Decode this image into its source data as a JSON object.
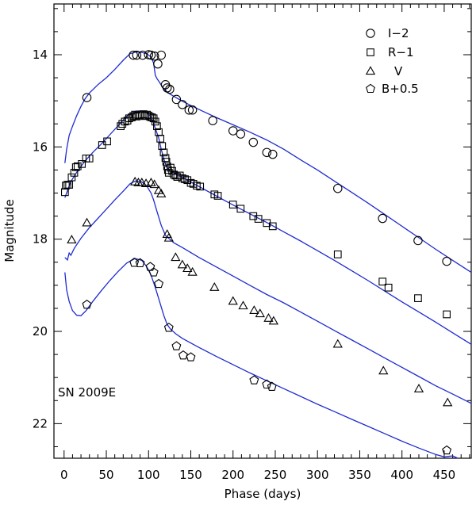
{
  "chart_data": {
    "type": "scatter",
    "xlabel": "Phase (days)",
    "ylabel": "Magnitude",
    "xlim": [
      -12,
      482
    ],
    "ylim": [
      22.75,
      12.9
    ],
    "x_ticks": [
      0,
      50,
      100,
      150,
      200,
      250,
      300,
      350,
      400,
      450
    ],
    "y_ticks": [
      14,
      16,
      18,
      20,
      22
    ],
    "annotation": "SN 2009E",
    "series": [
      {
        "name": "I−2",
        "marker": "circle",
        "points": [
          [
            27,
            14.93
          ],
          [
            82,
            14.01
          ],
          [
            86,
            14.01
          ],
          [
            93,
            14.01
          ],
          [
            100,
            14.0
          ],
          [
            103,
            14.01
          ],
          [
            107,
            14.03
          ],
          [
            111,
            14.2
          ],
          [
            115,
            14.01
          ],
          [
            120,
            14.65
          ],
          [
            122,
            14.72
          ],
          [
            125,
            14.75
          ],
          [
            133,
            14.97
          ],
          [
            140,
            15.08
          ],
          [
            148,
            15.2
          ],
          [
            152,
            15.2
          ],
          [
            176,
            15.43
          ],
          [
            200,
            15.65
          ],
          [
            209,
            15.72
          ],
          [
            224,
            15.9
          ],
          [
            240,
            16.12
          ],
          [
            247,
            16.16
          ],
          [
            324,
            16.9
          ],
          [
            377,
            17.55
          ],
          [
            419,
            18.03
          ],
          [
            453,
            18.48
          ]
        ]
      },
      {
        "name": "R−1",
        "marker": "square",
        "points": [
          [
            1,
            16.98
          ],
          [
            2,
            16.84
          ],
          [
            4,
            16.82
          ],
          [
            6,
            16.82
          ],
          [
            9,
            16.66
          ],
          [
            12,
            16.56
          ],
          [
            14,
            16.44
          ],
          [
            16,
            16.42
          ],
          [
            21,
            16.37
          ],
          [
            26,
            16.25
          ],
          [
            30,
            16.25
          ],
          [
            45,
            15.96
          ],
          [
            51,
            15.88
          ],
          [
            67,
            15.55
          ],
          [
            69,
            15.5
          ],
          [
            72,
            15.45
          ],
          [
            75,
            15.43
          ],
          [
            77,
            15.38
          ],
          [
            80,
            15.36
          ],
          [
            82,
            15.33
          ],
          [
            84,
            15.3
          ],
          [
            86,
            15.34
          ],
          [
            88,
            15.32
          ],
          [
            90,
            15.32
          ],
          [
            92,
            15.3
          ],
          [
            94,
            15.29
          ],
          [
            96,
            15.33
          ],
          [
            98,
            15.3
          ],
          [
            100,
            15.32
          ],
          [
            102,
            15.35
          ],
          [
            104,
            15.36
          ],
          [
            106,
            15.38
          ],
          [
            108,
            15.45
          ],
          [
            110,
            15.55
          ],
          [
            112,
            15.68
          ],
          [
            114,
            15.82
          ],
          [
            116,
            15.98
          ],
          [
            118,
            16.12
          ],
          [
            120,
            16.24
          ],
          [
            121,
            16.32
          ],
          [
            122,
            16.42
          ],
          [
            123,
            16.5
          ],
          [
            124,
            16.56
          ],
          [
            126,
            16.45
          ],
          [
            128,
            16.52
          ],
          [
            130,
            16.6
          ],
          [
            132,
            16.62
          ],
          [
            134,
            16.65
          ],
          [
            137,
            16.62
          ],
          [
            140,
            16.68
          ],
          [
            143,
            16.7
          ],
          [
            146,
            16.72
          ],
          [
            150,
            16.78
          ],
          [
            153,
            16.8
          ],
          [
            157,
            16.84
          ],
          [
            161,
            16.86
          ],
          [
            178,
            17.03
          ],
          [
            182,
            17.06
          ],
          [
            200,
            17.25
          ],
          [
            209,
            17.34
          ],
          [
            224,
            17.5
          ],
          [
            230,
            17.56
          ],
          [
            240,
            17.65
          ],
          [
            247,
            17.72
          ],
          [
            324,
            18.33
          ],
          [
            377,
            18.92
          ],
          [
            384,
            19.05
          ],
          [
            419,
            19.28
          ],
          [
            453,
            19.63
          ]
        ]
      },
      {
        "name": "V",
        "marker": "triangle",
        "points": [
          [
            9,
            18.02
          ],
          [
            27,
            17.65
          ],
          [
            84,
            16.76
          ],
          [
            88,
            16.78
          ],
          [
            92,
            16.78
          ],
          [
            97,
            16.8
          ],
          [
            103,
            16.78
          ],
          [
            107,
            16.82
          ],
          [
            112,
            16.95
          ],
          [
            115,
            17.02
          ],
          [
            122,
            17.9
          ],
          [
            124,
            17.98
          ],
          [
            132,
            18.4
          ],
          [
            140,
            18.56
          ],
          [
            146,
            18.64
          ],
          [
            152,
            18.72
          ],
          [
            178,
            19.05
          ],
          [
            200,
            19.35
          ],
          [
            212,
            19.45
          ],
          [
            225,
            19.55
          ],
          [
            232,
            19.62
          ],
          [
            242,
            19.72
          ],
          [
            248,
            19.78
          ],
          [
            324,
            20.28
          ],
          [
            378,
            20.86
          ],
          [
            420,
            21.25
          ],
          [
            454,
            21.55
          ]
        ]
      },
      {
        "name": "B+0.5",
        "marker": "pentagon",
        "points": [
          [
            27,
            19.42
          ],
          [
            83,
            18.51
          ],
          [
            90,
            18.52
          ],
          [
            102,
            18.6
          ],
          [
            106,
            18.72
          ],
          [
            112,
            18.97
          ],
          [
            124,
            19.92
          ],
          [
            133,
            20.32
          ],
          [
            141,
            20.52
          ],
          [
            150,
            20.56
          ],
          [
            225,
            21.06
          ],
          [
            240,
            21.15
          ],
          [
            246,
            21.2
          ],
          [
            453,
            22.58
          ]
        ]
      }
    ],
    "models": [
      {
        "name": "I−2 model",
        "points": [
          [
            1,
            16.35
          ],
          [
            3,
            16.05
          ],
          [
            6,
            15.75
          ],
          [
            10,
            15.55
          ],
          [
            15,
            15.32
          ],
          [
            20,
            15.12
          ],
          [
            25,
            14.95
          ],
          [
            30,
            14.83
          ],
          [
            40,
            14.65
          ],
          [
            50,
            14.5
          ],
          [
            60,
            14.32
          ],
          [
            70,
            14.12
          ],
          [
            78,
            13.98
          ],
          [
            85,
            13.94
          ],
          [
            92,
            13.95
          ],
          [
            98,
            13.98
          ],
          [
            103,
            14.05
          ],
          [
            106,
            14.18
          ],
          [
            108,
            14.45
          ],
          [
            110,
            14.52
          ],
          [
            113,
            14.6
          ],
          [
            117,
            14.72
          ],
          [
            120,
            14.78
          ],
          [
            125,
            14.85
          ],
          [
            140,
            15.01
          ],
          [
            160,
            15.19
          ],
          [
            180,
            15.36
          ],
          [
            200,
            15.52
          ],
          [
            220,
            15.68
          ],
          [
            240,
            15.85
          ],
          [
            260,
            16.05
          ],
          [
            280,
            16.28
          ],
          [
            300,
            16.5
          ],
          [
            320,
            16.74
          ],
          [
            340,
            16.98
          ],
          [
            360,
            17.22
          ],
          [
            380,
            17.47
          ],
          [
            400,
            17.72
          ],
          [
            420,
            17.97
          ],
          [
            440,
            18.22
          ],
          [
            460,
            18.46
          ],
          [
            482,
            18.72
          ]
        ]
      },
      {
        "name": "R−1 model",
        "points": [
          [
            1,
            17.1
          ],
          [
            4,
            16.95
          ],
          [
            8,
            16.75
          ],
          [
            15,
            16.55
          ],
          [
            25,
            16.3
          ],
          [
            35,
            16.1
          ],
          [
            45,
            15.92
          ],
          [
            55,
            15.72
          ],
          [
            65,
            15.52
          ],
          [
            75,
            15.32
          ],
          [
            85,
            15.22
          ],
          [
            92,
            15.22
          ],
          [
            98,
            15.26
          ],
          [
            103,
            15.35
          ],
          [
            106,
            15.48
          ],
          [
            108,
            15.6
          ],
          [
            112,
            15.8
          ],
          [
            115,
            16.05
          ],
          [
            118,
            16.25
          ],
          [
            121,
            16.42
          ],
          [
            125,
            16.52
          ],
          [
            130,
            16.56
          ],
          [
            140,
            16.66
          ],
          [
            160,
            16.86
          ],
          [
            180,
            17.06
          ],
          [
            200,
            17.26
          ],
          [
            220,
            17.45
          ],
          [
            240,
            17.64
          ],
          [
            260,
            17.84
          ],
          [
            280,
            18.04
          ],
          [
            300,
            18.25
          ],
          [
            320,
            18.46
          ],
          [
            340,
            18.68
          ],
          [
            360,
            18.9
          ],
          [
            380,
            19.13
          ],
          [
            400,
            19.36
          ],
          [
            420,
            19.58
          ],
          [
            440,
            19.8
          ],
          [
            460,
            20.03
          ],
          [
            482,
            20.28
          ]
        ]
      },
      {
        "name": "V model",
        "points": [
          [
            1,
            18.4
          ],
          [
            4,
            18.45
          ],
          [
            6,
            18.3
          ],
          [
            8,
            18.35
          ],
          [
            12,
            18.2
          ],
          [
            20,
            17.98
          ],
          [
            30,
            17.75
          ],
          [
            40,
            17.55
          ],
          [
            50,
            17.35
          ],
          [
            60,
            17.15
          ],
          [
            70,
            16.96
          ],
          [
            78,
            16.8
          ],
          [
            84,
            16.74
          ],
          [
            92,
            16.76
          ],
          [
            98,
            16.85
          ],
          [
            103,
            17.0
          ],
          [
            106,
            17.15
          ],
          [
            110,
            17.4
          ],
          [
            115,
            17.7
          ],
          [
            120,
            17.92
          ],
          [
            125,
            18.0
          ],
          [
            130,
            18.08
          ],
          [
            140,
            18.18
          ],
          [
            160,
            18.4
          ],
          [
            180,
            18.6
          ],
          [
            200,
            18.8
          ],
          [
            220,
            19.0
          ],
          [
            240,
            19.2
          ],
          [
            260,
            19.38
          ],
          [
            280,
            19.58
          ],
          [
            300,
            19.78
          ],
          [
            320,
            19.98
          ],
          [
            340,
            20.18
          ],
          [
            360,
            20.38
          ],
          [
            380,
            20.58
          ],
          [
            400,
            20.78
          ],
          [
            420,
            20.98
          ],
          [
            440,
            21.18
          ],
          [
            460,
            21.36
          ],
          [
            482,
            21.56
          ]
        ]
      },
      {
        "name": "B+0.5 model",
        "points": [
          [
            1,
            18.72
          ],
          [
            3,
            19.1
          ],
          [
            6,
            19.35
          ],
          [
            10,
            19.55
          ],
          [
            15,
            19.65
          ],
          [
            20,
            19.66
          ],
          [
            26,
            19.55
          ],
          [
            34,
            19.35
          ],
          [
            44,
            19.12
          ],
          [
            54,
            18.9
          ],
          [
            64,
            18.7
          ],
          [
            74,
            18.52
          ],
          [
            84,
            18.42
          ],
          [
            92,
            18.46
          ],
          [
            98,
            18.6
          ],
          [
            103,
            18.78
          ],
          [
            108,
            19.05
          ],
          [
            113,
            19.35
          ],
          [
            118,
            19.65
          ],
          [
            122,
            19.85
          ],
          [
            126,
            19.95
          ],
          [
            132,
            20.05
          ],
          [
            140,
            20.15
          ],
          [
            160,
            20.35
          ],
          [
            180,
            20.54
          ],
          [
            200,
            20.72
          ],
          [
            220,
            20.9
          ],
          [
            240,
            21.07
          ],
          [
            260,
            21.24
          ],
          [
            280,
            21.41
          ],
          [
            300,
            21.58
          ],
          [
            320,
            21.74
          ],
          [
            340,
            21.9
          ],
          [
            360,
            22.06
          ],
          [
            380,
            22.22
          ],
          [
            400,
            22.38
          ],
          [
            420,
            22.53
          ],
          [
            440,
            22.67
          ],
          [
            450,
            22.72
          ],
          [
            460,
            22.7
          ],
          [
            466,
            22.75
          ]
        ]
      }
    ],
    "legend": {
      "placement": "top-right",
      "entries": [
        {
          "label": "I−2",
          "marker": "circle"
        },
        {
          "label": "R−1",
          "marker": "square"
        },
        {
          "label": "V",
          "marker": "triangle"
        },
        {
          "label": "B+0.5",
          "marker": "pentagon"
        }
      ]
    }
  },
  "colors": {
    "model": "#1f2bd0",
    "marker": "#000000",
    "axes": "#000000"
  }
}
